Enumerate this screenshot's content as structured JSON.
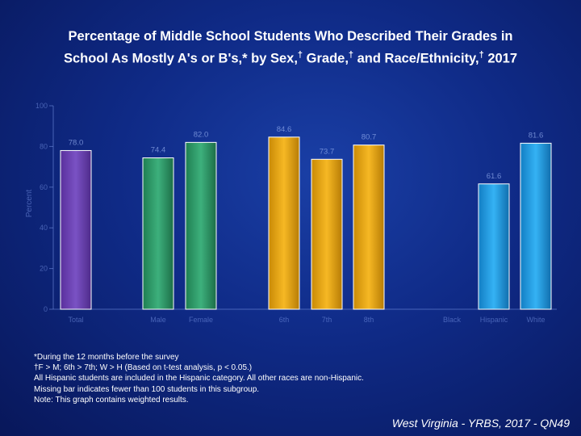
{
  "title": {
    "line1": "Percentage of Middle School Students Who Described Their Grades in",
    "line2_part1": "School As Mostly A's or B's,* by Sex,",
    "dagger": "†",
    "line2_part2": " Grade,",
    "line2_part3": " and Race/Ethnicity,",
    "line2_part4": " 2017"
  },
  "chart_data": {
    "type": "bar",
    "ylabel": "Percent",
    "ylim": [
      0,
      100
    ],
    "yticks": [
      "0",
      "20",
      "40",
      "60",
      "80",
      "100"
    ],
    "categories": [
      "Total",
      "Male",
      "Female",
      "6th",
      "7th",
      "8th",
      "Black",
      "Hispanic",
      "White"
    ],
    "values": [
      78.0,
      74.4,
      82.0,
      84.6,
      73.7,
      80.7,
      null,
      61.6,
      81.6
    ],
    "value_labels": [
      "78.0",
      "74.4",
      "82.0",
      "84.6",
      "73.7",
      "80.7",
      "",
      "61.6",
      "81.6"
    ],
    "colors": {
      "total": "#6a3fb0",
      "sex": "#2e9a6a",
      "grade": "#e0a010",
      "race": "#1f9ae0"
    }
  },
  "footnotes": [
    "*During the 12 months before the survey",
    "†F > M; 6th > 7th; W > H (Based on t-test analysis, p < 0.05.)",
    "All Hispanic students are included in the Hispanic category.  All other races are non-Hispanic.",
    "Missing bar indicates fewer than 100 students in this subgroup.",
    "Note: This graph contains weighted results."
  ],
  "source": "West Virginia - YRBS, 2017 - QN49"
}
